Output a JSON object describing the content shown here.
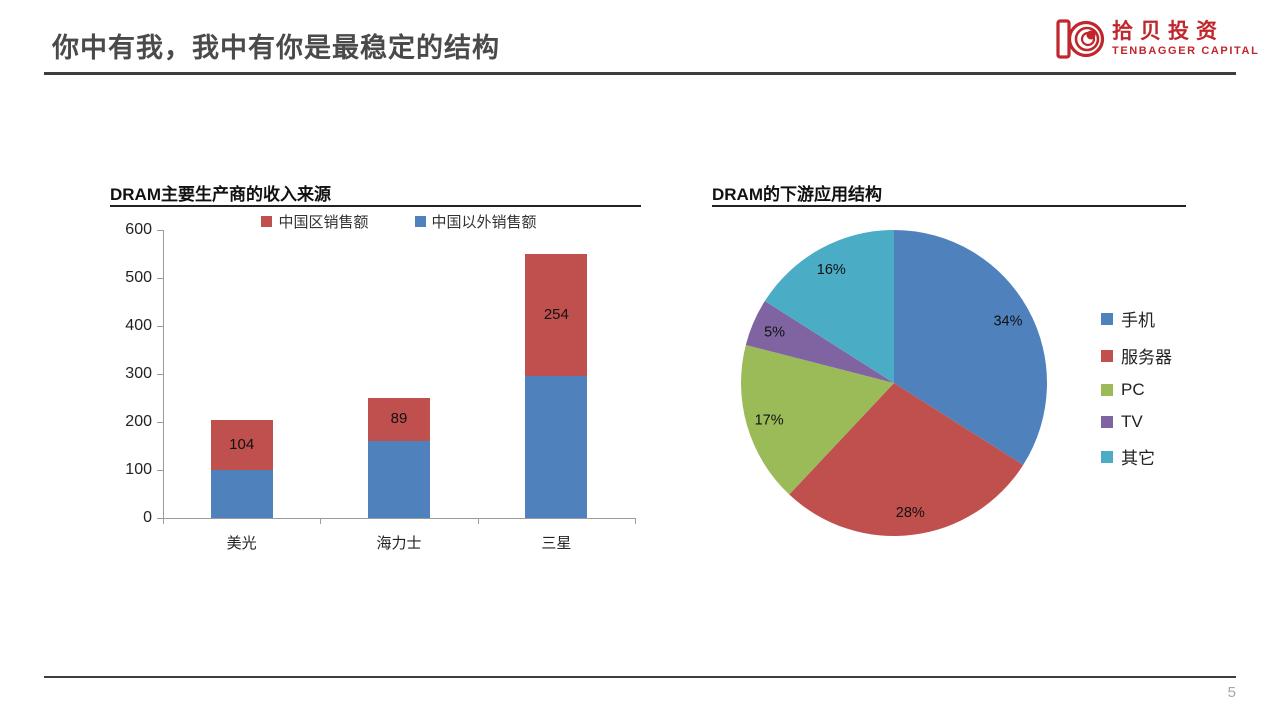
{
  "page": {
    "title": "你中有我，我中有你是最稳定的结构",
    "page_number": "5"
  },
  "logo": {
    "name_cn": "拾贝投资",
    "name_en": "TENBAGGER CAPITAL",
    "color": "#c0272d"
  },
  "chart_data": [
    {
      "type": "bar",
      "variant": "stacked-column",
      "title": "DRAM主要生产商的收入来源",
      "categories": [
        "美光",
        "海力士",
        "三星"
      ],
      "series": [
        {
          "name": "中国以外销售额",
          "color": "#4f81bd",
          "values": [
            100,
            161,
            296
          ]
        },
        {
          "name": "中国区销售额",
          "color": "#c0504d",
          "values": [
            104,
            89,
            254
          ],
          "data_labels": [
            "104",
            "89",
            "254"
          ]
        }
      ],
      "legend_order": [
        "中国区销售额",
        "中国以外销售额"
      ],
      "legend_position": "top",
      "ylim": [
        0,
        600
      ],
      "yticks": [
        0,
        100,
        200,
        300,
        400,
        500,
        600
      ],
      "grid": false,
      "axis_color": "#9b9b9b"
    },
    {
      "type": "pie",
      "title": "DRAM的下游应用结构",
      "slices": [
        {
          "label": "手机",
          "value": 34,
          "pct_label": "34%",
          "color": "#4f81bd"
        },
        {
          "label": "服务器",
          "value": 28,
          "pct_label": "28%",
          "color": "#c0504d"
        },
        {
          "label": "PC",
          "value": 17,
          "pct_label": "17%",
          "color": "#9bbb59"
        },
        {
          "label": "TV",
          "value": 5,
          "pct_label": "5%",
          "color": "#8064a2"
        },
        {
          "label": "其它",
          "value": 16,
          "pct_label": "16%",
          "color": "#4bacc6"
        }
      ],
      "start_angle_deg": 0,
      "direction": "clockwise",
      "legend_position": "right",
      "label_color": "#111111"
    }
  ]
}
